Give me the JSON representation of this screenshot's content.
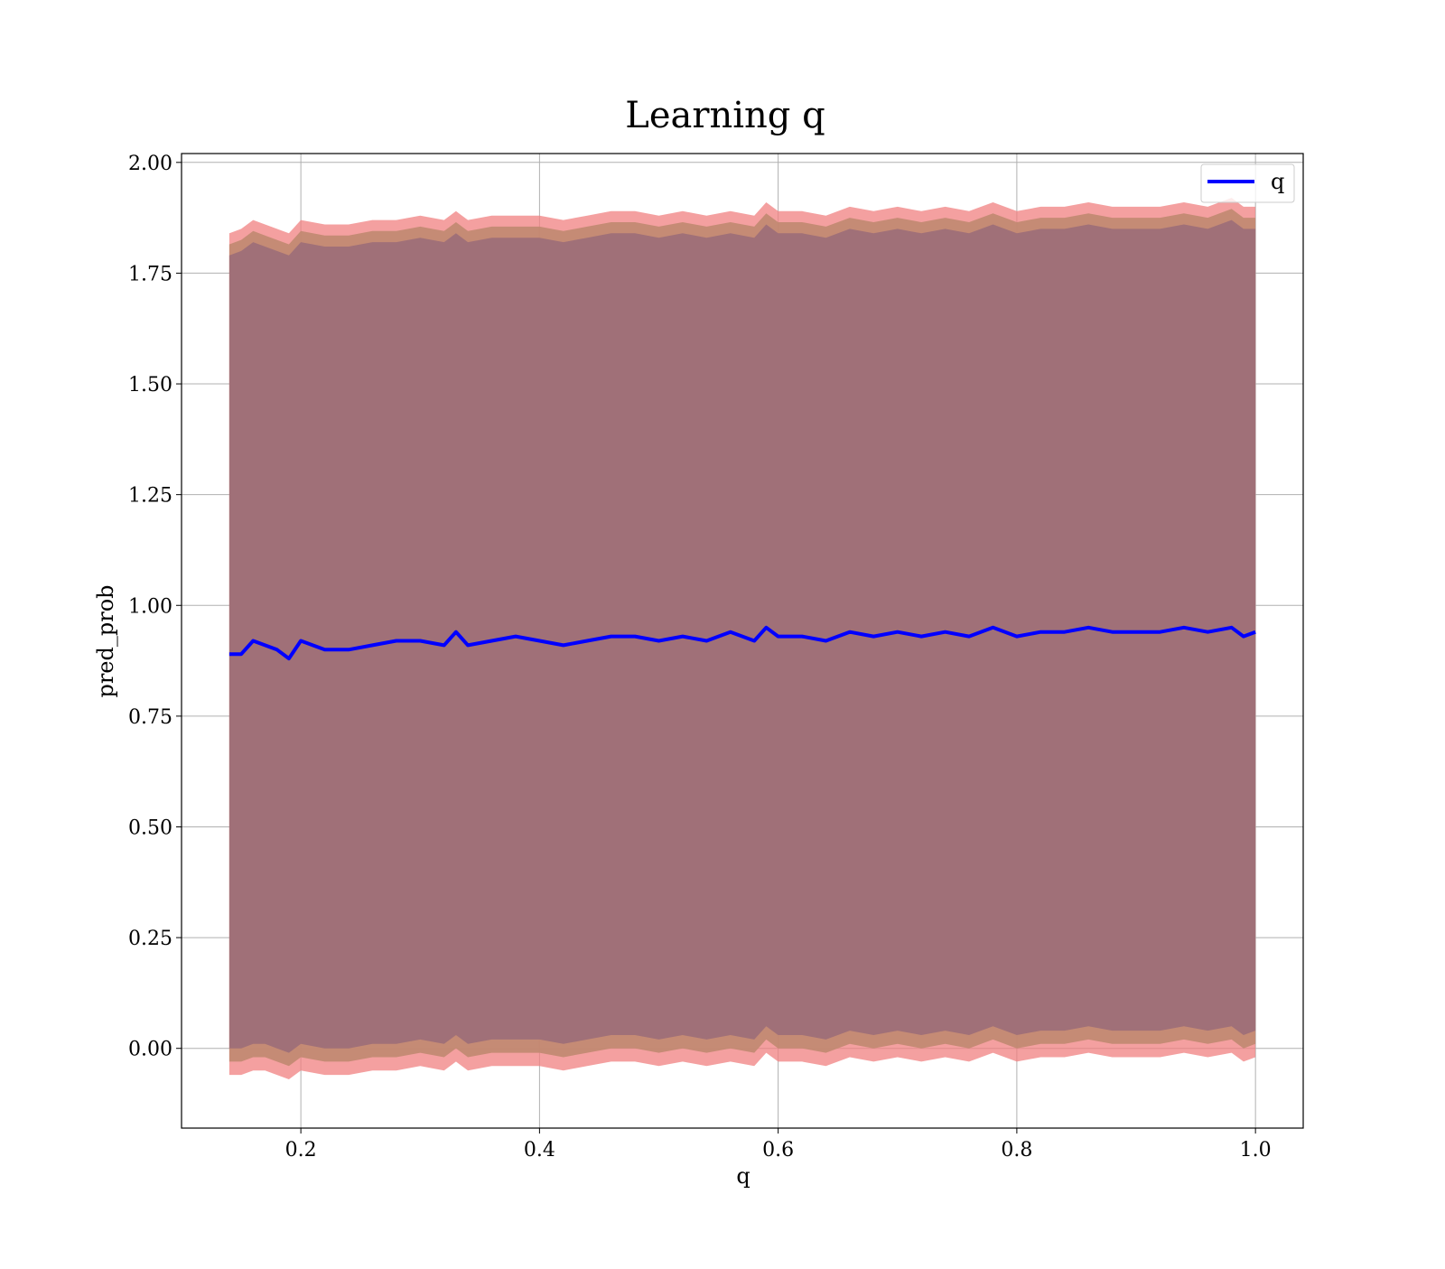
{
  "chart_data": {
    "type": "area",
    "title": "Learning q",
    "xlabel": "q",
    "ylabel": "pred_prob",
    "xlim": [
      0.1,
      1.04
    ],
    "ylim": [
      -0.18,
      2.02
    ],
    "grid": true,
    "legend": {
      "placement": "top-right",
      "entries": [
        "q"
      ]
    },
    "x_ticks": [
      "0.2",
      "0.4",
      "0.6",
      "0.8",
      "1.0"
    ],
    "y_ticks": [
      "0.00",
      "0.25",
      "0.50",
      "0.75",
      "1.00",
      "1.25",
      "1.50",
      "1.75",
      "2.00"
    ],
    "colors": {
      "line": "#0000ff",
      "band_inner": "#a07078",
      "band_mid": "#c08870",
      "band_outer": "#f08080",
      "grid": "#b0b0b0"
    },
    "series": [
      {
        "name": "q",
        "x": [
          0.14,
          0.15,
          0.16,
          0.17,
          0.18,
          0.19,
          0.2,
          0.22,
          0.24,
          0.26,
          0.28,
          0.3,
          0.32,
          0.33,
          0.34,
          0.36,
          0.38,
          0.4,
          0.42,
          0.44,
          0.46,
          0.48,
          0.5,
          0.52,
          0.54,
          0.56,
          0.58,
          0.59,
          0.6,
          0.62,
          0.64,
          0.66,
          0.68,
          0.7,
          0.72,
          0.74,
          0.76,
          0.78,
          0.8,
          0.82,
          0.84,
          0.86,
          0.88,
          0.9,
          0.92,
          0.94,
          0.96,
          0.98,
          0.99,
          1.0
        ],
        "values": [
          0.89,
          0.89,
          0.92,
          0.91,
          0.9,
          0.88,
          0.92,
          0.9,
          0.9,
          0.91,
          0.92,
          0.92,
          0.91,
          0.94,
          0.91,
          0.92,
          0.93,
          0.92,
          0.91,
          0.92,
          0.93,
          0.93,
          0.92,
          0.93,
          0.92,
          0.94,
          0.92,
          0.95,
          0.93,
          0.93,
          0.92,
          0.94,
          0.93,
          0.94,
          0.93,
          0.94,
          0.93,
          0.95,
          0.93,
          0.94,
          0.94,
          0.95,
          0.94,
          0.94,
          0.94,
          0.95,
          0.94,
          0.95,
          0.93,
          0.94
        ],
        "lower_inner": [
          0.0,
          0.0,
          0.01,
          0.01,
          0.0,
          -0.01,
          0.01,
          0.0,
          0.0,
          0.01,
          0.01,
          0.02,
          0.01,
          0.03,
          0.01,
          0.02,
          0.02,
          0.02,
          0.01,
          0.02,
          0.03,
          0.03,
          0.02,
          0.03,
          0.02,
          0.03,
          0.02,
          0.05,
          0.03,
          0.03,
          0.02,
          0.04,
          0.03,
          0.04,
          0.03,
          0.04,
          0.03,
          0.05,
          0.03,
          0.04,
          0.04,
          0.05,
          0.04,
          0.04,
          0.04,
          0.05,
          0.04,
          0.05,
          0.03,
          0.04
        ],
        "upper_inner": [
          1.79,
          1.8,
          1.82,
          1.81,
          1.8,
          1.79,
          1.82,
          1.81,
          1.81,
          1.82,
          1.82,
          1.83,
          1.82,
          1.84,
          1.82,
          1.83,
          1.83,
          1.83,
          1.82,
          1.83,
          1.84,
          1.84,
          1.83,
          1.84,
          1.83,
          1.84,
          1.83,
          1.86,
          1.84,
          1.84,
          1.83,
          1.85,
          1.84,
          1.85,
          1.84,
          1.85,
          1.84,
          1.86,
          1.84,
          1.85,
          1.85,
          1.86,
          1.85,
          1.85,
          1.85,
          1.86,
          1.85,
          1.87,
          1.85,
          1.85
        ],
        "lower_outer": [
          -0.06,
          -0.06,
          -0.05,
          -0.05,
          -0.06,
          -0.07,
          -0.05,
          -0.06,
          -0.06,
          -0.05,
          -0.05,
          -0.04,
          -0.05,
          -0.03,
          -0.05,
          -0.04,
          -0.04,
          -0.04,
          -0.05,
          -0.04,
          -0.03,
          -0.03,
          -0.04,
          -0.03,
          -0.04,
          -0.03,
          -0.04,
          -0.01,
          -0.03,
          -0.03,
          -0.04,
          -0.02,
          -0.03,
          -0.02,
          -0.03,
          -0.02,
          -0.03,
          -0.01,
          -0.03,
          -0.02,
          -0.02,
          -0.01,
          -0.02,
          -0.02,
          -0.02,
          -0.01,
          -0.02,
          -0.01,
          -0.03,
          -0.02
        ],
        "upper_outer": [
          1.84,
          1.85,
          1.87,
          1.86,
          1.85,
          1.84,
          1.87,
          1.86,
          1.86,
          1.87,
          1.87,
          1.88,
          1.87,
          1.89,
          1.87,
          1.88,
          1.88,
          1.88,
          1.87,
          1.88,
          1.89,
          1.89,
          1.88,
          1.89,
          1.88,
          1.89,
          1.88,
          1.91,
          1.89,
          1.89,
          1.88,
          1.9,
          1.89,
          1.9,
          1.89,
          1.9,
          1.89,
          1.91,
          1.89,
          1.9,
          1.9,
          1.91,
          1.9,
          1.9,
          1.9,
          1.91,
          1.9,
          1.92,
          1.9,
          1.9
        ]
      }
    ]
  }
}
